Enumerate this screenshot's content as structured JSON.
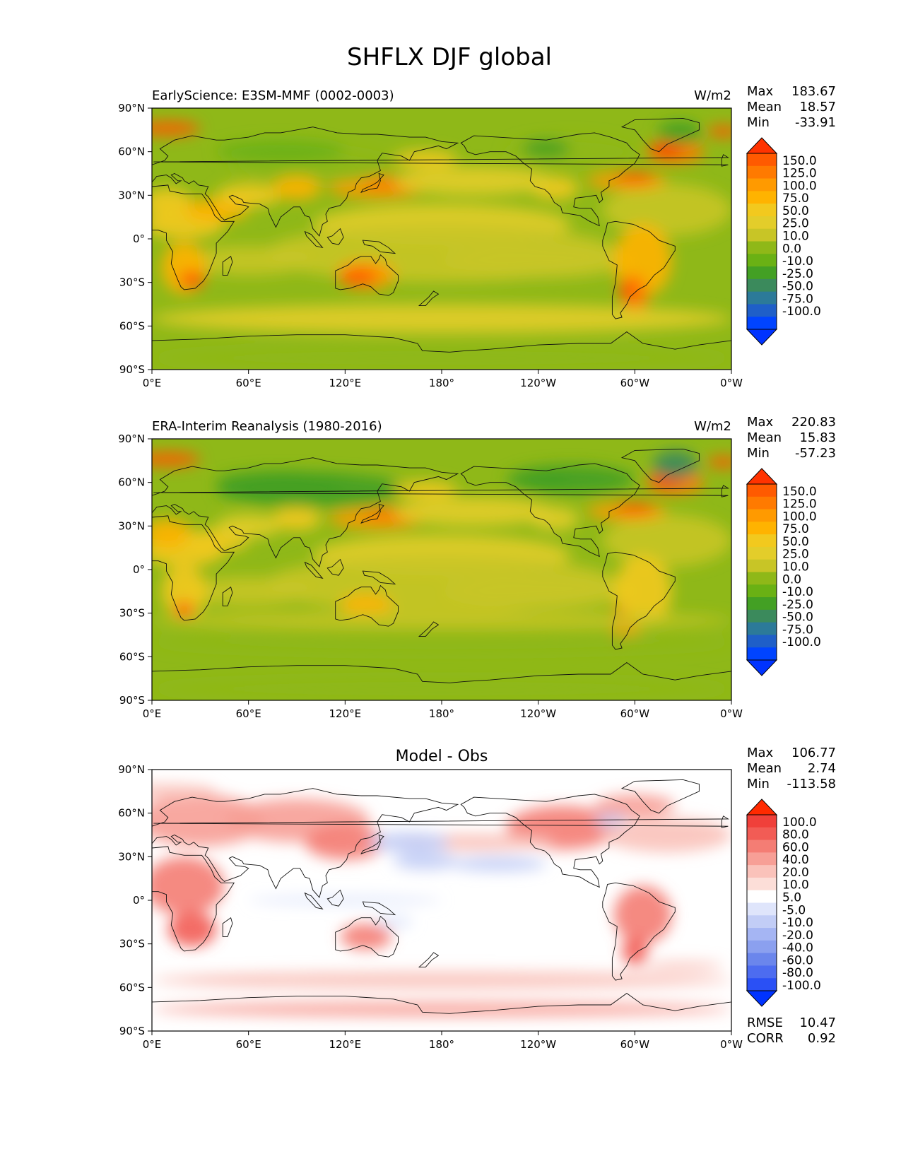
{
  "figure": {
    "title": "SHFLX DJF global"
  },
  "chart_data": [
    {
      "type": "heatmap",
      "name": "model",
      "title_left": "EarlyScience: E3SM-MMF (0002-0003)",
      "title_center": "",
      "units": "W/m2",
      "stats": [
        {
          "label": "Max",
          "value": "183.67"
        },
        {
          "label": "Mean",
          "value": "18.57"
        },
        {
          "label": "Min",
          "value": "-33.91"
        }
      ],
      "extra_stats": [],
      "x_ticks": [
        "0°E",
        "60°E",
        "120°E",
        "180°",
        "120°W",
        "60°W",
        "0°W"
      ],
      "y_ticks": [
        "90°N",
        "60°N",
        "30°N",
        "0°",
        "30°S",
        "60°S",
        "90°S"
      ],
      "xlim": [
        0,
        360
      ],
      "ylim": [
        -90,
        90
      ],
      "colorbar_labels": [
        "150.0",
        "125.0",
        "100.0",
        "75.0",
        "50.0",
        "25.0",
        "10.0",
        "0.0",
        "-10.0",
        "-25.0",
        "-50.0",
        "-75.0",
        "-100.0"
      ],
      "colorbar_colors": [
        "#ff3300",
        "#ff5a00",
        "#ff7a00",
        "#ff9a00",
        "#ffb300",
        "#f2c91e",
        "#e3cd2a",
        "#c8c526",
        "#8fb818",
        "#6ab114",
        "#43a024",
        "#3b8a5c",
        "#2c7a99",
        "#1f5fc8",
        "#0044ff",
        "#0033ff"
      ],
      "base_color": "#8fb818"
    },
    {
      "type": "heatmap",
      "name": "obs",
      "title_left": "ERA-Interim Reanalysis (1980-2016)",
      "title_center": "",
      "units": "W/m2",
      "stats": [
        {
          "label": "Max",
          "value": "220.83"
        },
        {
          "label": "Mean",
          "value": "15.83"
        },
        {
          "label": "Min",
          "value": "-57.23"
        }
      ],
      "extra_stats": [],
      "x_ticks": [
        "0°E",
        "60°E",
        "120°E",
        "180°",
        "120°W",
        "60°W",
        "0°W"
      ],
      "y_ticks": [
        "90°N",
        "60°N",
        "30°N",
        "0°",
        "30°S",
        "60°S",
        "90°S"
      ],
      "xlim": [
        0,
        360
      ],
      "ylim": [
        -90,
        90
      ],
      "colorbar_labels": [
        "150.0",
        "125.0",
        "100.0",
        "75.0",
        "50.0",
        "25.0",
        "10.0",
        "0.0",
        "-10.0",
        "-25.0",
        "-50.0",
        "-75.0",
        "-100.0"
      ],
      "colorbar_colors": [
        "#ff3300",
        "#ff5a00",
        "#ff7a00",
        "#ff9a00",
        "#ffb300",
        "#f2c91e",
        "#e3cd2a",
        "#c8c526",
        "#8fb818",
        "#6ab114",
        "#43a024",
        "#3b8a5c",
        "#2c7a99",
        "#1f5fc8",
        "#0044ff",
        "#0033ff"
      ],
      "base_color": "#8fb818"
    },
    {
      "type": "heatmap",
      "name": "diff",
      "title_left": "",
      "title_center": "Model - Obs",
      "units": "",
      "stats": [
        {
          "label": "Max",
          "value": "106.77"
        },
        {
          "label": "Mean",
          "value": "2.74"
        },
        {
          "label": "Min",
          "value": "-113.58"
        }
      ],
      "extra_stats": [
        {
          "label": "RMSE",
          "value": "10.47"
        },
        {
          "label": "CORR",
          "value": "0.92"
        }
      ],
      "x_ticks": [
        "0°E",
        "60°E",
        "120°E",
        "180°",
        "120°W",
        "60°W",
        "0°W"
      ],
      "y_ticks": [
        "90°N",
        "60°N",
        "30°N",
        "0°",
        "30°S",
        "60°S",
        "90°S"
      ],
      "xlim": [
        0,
        360
      ],
      "ylim": [
        -90,
        90
      ],
      "colorbar_labels": [
        "100.0",
        "80.0",
        "60.0",
        "40.0",
        "20.0",
        "10.0",
        "5.0",
        "-5.0",
        "-10.0",
        "-20.0",
        "-40.0",
        "-60.0",
        "-80.0",
        "-100.0"
      ],
      "colorbar_colors": [
        "#ff2a00",
        "#f0403a",
        "#f25c55",
        "#f47d74",
        "#f79f96",
        "#fac2ba",
        "#fcded8",
        "#ffffff",
        "#dfe5fb",
        "#c2cdf6",
        "#a5b5f3",
        "#8ba0ef",
        "#6b86ec",
        "#4d6cf0",
        "#2a50f5",
        "#0033ff"
      ],
      "base_color": "#ffffff"
    }
  ]
}
